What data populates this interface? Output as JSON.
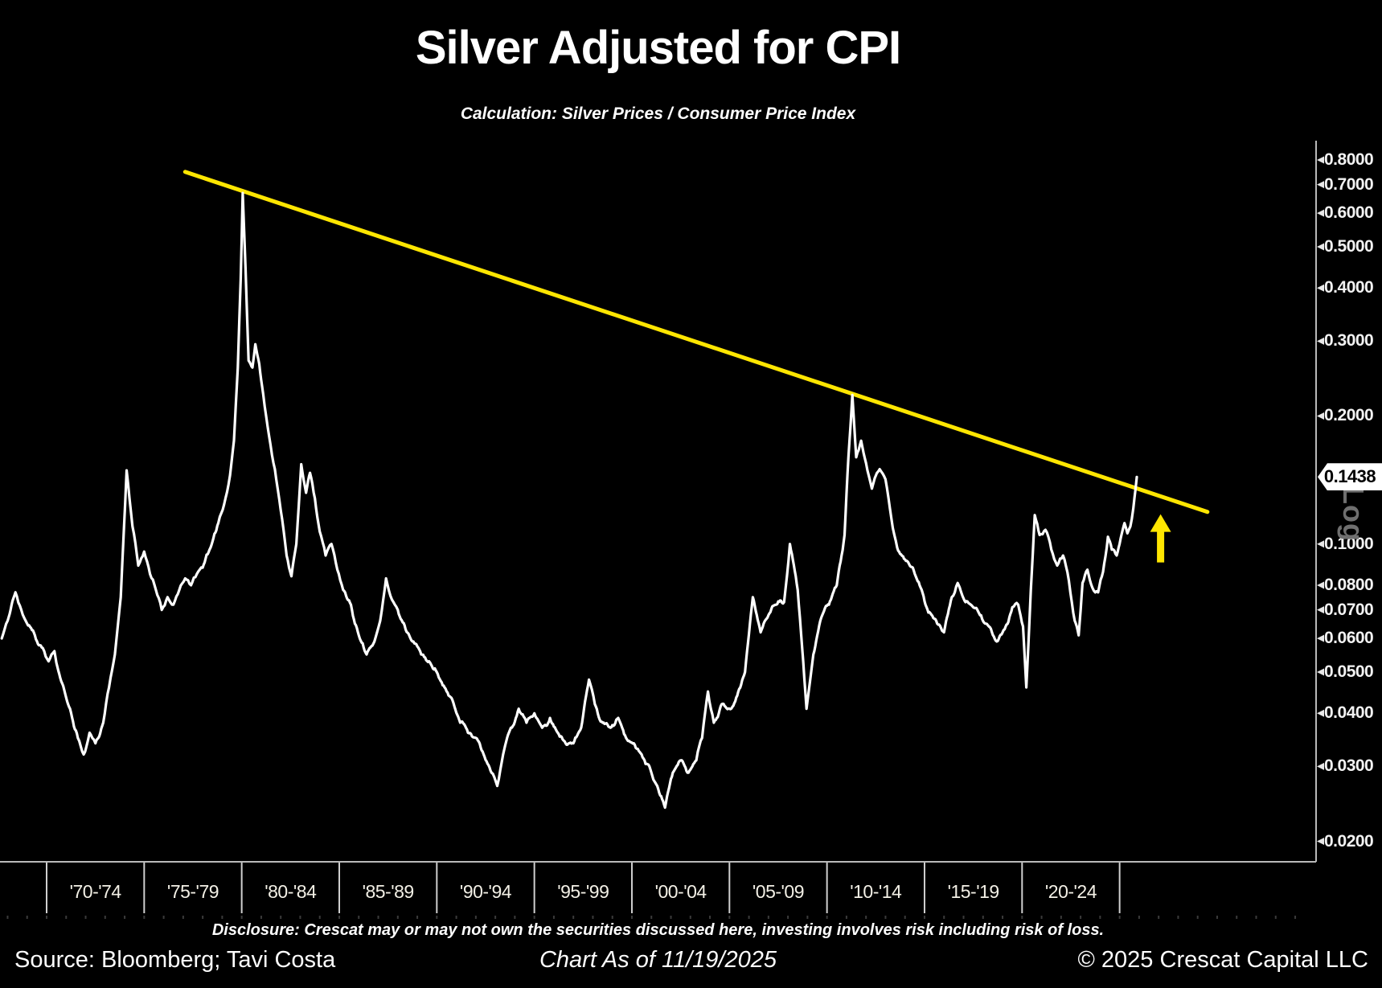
{
  "header": {
    "title": "Silver Adjusted for CPI",
    "subtitle": "Calculation: Silver Prices / Consumer Price Index"
  },
  "footer": {
    "disclosure": "Disclosure: Crescat may or may not own the securities discussed here, investing involves risk including risk of loss.",
    "source": "Source: Bloomberg; Tavi Costa",
    "as_of": "Chart As of 11/19/2025",
    "copyright": "© 2025 Crescat Capital LLC"
  },
  "colors": {
    "background": "#000000",
    "price_line": "#ffffff",
    "trendline": "#ffe600",
    "arrow": "#ffe600",
    "axis": "#b9b9b9",
    "separator": "#cfcfcf",
    "minor_tick": "#3a3a3a"
  },
  "chart_data": {
    "type": "line",
    "title": "Silver Adjusted for CPI",
    "subtitle": "Calculation: Silver Prices / Consumer Price Index",
    "legend": "none",
    "grid": false,
    "xaxis": {
      "xlim": [
        1967.61,
        2035.07
      ],
      "bin_start_year": 1970,
      "bin_span_years": 5,
      "bin_labels": [
        "'70-'74",
        "'75-'79",
        "'80-'84",
        "'85-'89",
        "'90-'94",
        "'95-'99",
        "'00-'04",
        "'05-'09",
        "'10-'14",
        "'15-'19",
        "'20-'24"
      ]
    },
    "yaxis": {
      "scale": "log",
      "ylim": [
        0.0179,
        0.888
      ],
      "scale_label": "Log",
      "current_value": 0.1438,
      "current_value_label": "0.1438",
      "ticks": [
        {
          "label": "0.8000",
          "value": 0.8
        },
        {
          "label": "0.7000",
          "value": 0.7
        },
        {
          "label": "0.6000",
          "value": 0.6
        },
        {
          "label": "0.5000",
          "value": 0.5
        },
        {
          "label": "0.4000",
          "value": 0.4
        },
        {
          "label": "0.3000",
          "value": 0.3
        },
        {
          "label": "0.2000",
          "value": 0.2
        },
        {
          "label": "0.1000",
          "value": 0.1
        },
        {
          "label": "0.0800",
          "value": 0.08
        },
        {
          "label": "0.0700",
          "value": 0.07
        },
        {
          "label": "0.0600",
          "value": 0.06
        },
        {
          "label": "0.0500",
          "value": 0.05
        },
        {
          "label": "0.0400",
          "value": 0.04
        },
        {
          "label": "0.0300",
          "value": 0.03
        },
        {
          "label": "0.0200",
          "value": 0.02
        }
      ]
    },
    "series": [
      {
        "name": "Silver Prices / Consumer Price Index",
        "color": "#ffffff",
        "points": [
          [
            1967.7,
            0.06
          ],
          [
            1968.0,
            0.066
          ],
          [
            1968.4,
            0.077
          ],
          [
            1968.7,
            0.07
          ],
          [
            1969.0,
            0.065
          ],
          [
            1969.4,
            0.061
          ],
          [
            1969.8,
            0.057
          ],
          [
            1970.1,
            0.053
          ],
          [
            1970.4,
            0.056
          ],
          [
            1970.8,
            0.047
          ],
          [
            1971.2,
            0.041
          ],
          [
            1971.6,
            0.035
          ],
          [
            1971.9,
            0.032
          ],
          [
            1972.2,
            0.036
          ],
          [
            1972.5,
            0.034
          ],
          [
            1972.9,
            0.038
          ],
          [
            1973.2,
            0.046
          ],
          [
            1973.5,
            0.055
          ],
          [
            1973.8,
            0.075
          ],
          [
            1974.1,
            0.149
          ],
          [
            1974.4,
            0.11
          ],
          [
            1974.7,
            0.089
          ],
          [
            1975.0,
            0.096
          ],
          [
            1975.3,
            0.085
          ],
          [
            1975.6,
            0.078
          ],
          [
            1975.9,
            0.07
          ],
          [
            1976.2,
            0.075
          ],
          [
            1976.5,
            0.072
          ],
          [
            1976.8,
            0.078
          ],
          [
            1977.1,
            0.083
          ],
          [
            1977.4,
            0.08
          ],
          [
            1977.7,
            0.085
          ],
          [
            1978.0,
            0.088
          ],
          [
            1978.4,
            0.098
          ],
          [
            1978.8,
            0.112
          ],
          [
            1979.1,
            0.124
          ],
          [
            1979.4,
            0.145
          ],
          [
            1979.6,
            0.175
          ],
          [
            1979.8,
            0.26
          ],
          [
            1979.95,
            0.42
          ],
          [
            1980.05,
            0.669
          ],
          [
            1980.2,
            0.44
          ],
          [
            1980.35,
            0.27
          ],
          [
            1980.55,
            0.26
          ],
          [
            1980.7,
            0.295
          ],
          [
            1980.9,
            0.265
          ],
          [
            1981.1,
            0.225
          ],
          [
            1981.4,
            0.18
          ],
          [
            1981.7,
            0.15
          ],
          [
            1982.0,
            0.12
          ],
          [
            1982.3,
            0.094
          ],
          [
            1982.55,
            0.084
          ],
          [
            1982.8,
            0.1
          ],
          [
            1983.05,
            0.154
          ],
          [
            1983.3,
            0.132
          ],
          [
            1983.5,
            0.147
          ],
          [
            1983.75,
            0.128
          ],
          [
            1984.0,
            0.107
          ],
          [
            1984.3,
            0.094
          ],
          [
            1984.6,
            0.1
          ],
          [
            1984.9,
            0.087
          ],
          [
            1985.2,
            0.078
          ],
          [
            1985.6,
            0.072
          ],
          [
            1986.0,
            0.061
          ],
          [
            1986.4,
            0.055
          ],
          [
            1986.8,
            0.059
          ],
          [
            1987.1,
            0.066
          ],
          [
            1987.4,
            0.083
          ],
          [
            1987.7,
            0.074
          ],
          [
            1988.0,
            0.07
          ],
          [
            1988.4,
            0.063
          ],
          [
            1988.8,
            0.059
          ],
          [
            1989.2,
            0.055
          ],
          [
            1989.6,
            0.053
          ],
          [
            1990.0,
            0.05
          ],
          [
            1990.4,
            0.046
          ],
          [
            1990.8,
            0.043
          ],
          [
            1991.2,
            0.038
          ],
          [
            1991.6,
            0.036
          ],
          [
            1992.0,
            0.035
          ],
          [
            1992.4,
            0.032
          ],
          [
            1992.8,
            0.029
          ],
          [
            1993.1,
            0.027
          ],
          [
            1993.4,
            0.032
          ],
          [
            1993.8,
            0.037
          ],
          [
            1994.2,
            0.041
          ],
          [
            1994.6,
            0.038
          ],
          [
            1995.0,
            0.04
          ],
          [
            1995.4,
            0.037
          ],
          [
            1995.8,
            0.039
          ],
          [
            1996.2,
            0.036
          ],
          [
            1996.6,
            0.034
          ],
          [
            1997.0,
            0.034
          ],
          [
            1997.4,
            0.037
          ],
          [
            1997.8,
            0.048
          ],
          [
            1998.1,
            0.042
          ],
          [
            1998.5,
            0.038
          ],
          [
            1998.9,
            0.037
          ],
          [
            1999.3,
            0.039
          ],
          [
            1999.7,
            0.035
          ],
          [
            2000.1,
            0.034
          ],
          [
            2000.5,
            0.032
          ],
          [
            2000.9,
            0.03
          ],
          [
            2001.3,
            0.027
          ],
          [
            2001.7,
            0.024
          ],
          [
            2002.1,
            0.029
          ],
          [
            2002.5,
            0.031
          ],
          [
            2002.9,
            0.029
          ],
          [
            2003.3,
            0.031
          ],
          [
            2003.6,
            0.035
          ],
          [
            2003.9,
            0.045
          ],
          [
            2004.2,
            0.038
          ],
          [
            2004.6,
            0.042
          ],
          [
            2005.0,
            0.041
          ],
          [
            2005.4,
            0.044
          ],
          [
            2005.8,
            0.05
          ],
          [
            2006.2,
            0.075
          ],
          [
            2006.6,
            0.062
          ],
          [
            2007.0,
            0.068
          ],
          [
            2007.4,
            0.072
          ],
          [
            2007.8,
            0.073
          ],
          [
            2008.1,
            0.1
          ],
          [
            2008.5,
            0.078
          ],
          [
            2008.95,
            0.041
          ],
          [
            2009.3,
            0.055
          ],
          [
            2009.7,
            0.067
          ],
          [
            2010.1,
            0.072
          ],
          [
            2010.5,
            0.08
          ],
          [
            2010.9,
            0.105
          ],
          [
            2011.1,
            0.16
          ],
          [
            2011.3,
            0.224
          ],
          [
            2011.5,
            0.16
          ],
          [
            2011.75,
            0.175
          ],
          [
            2012.0,
            0.155
          ],
          [
            2012.3,
            0.135
          ],
          [
            2012.7,
            0.15
          ],
          [
            2013.0,
            0.142
          ],
          [
            2013.3,
            0.115
          ],
          [
            2013.6,
            0.098
          ],
          [
            2014.0,
            0.092
          ],
          [
            2014.4,
            0.088
          ],
          [
            2014.8,
            0.079
          ],
          [
            2015.2,
            0.069
          ],
          [
            2015.6,
            0.066
          ],
          [
            2016.0,
            0.062
          ],
          [
            2016.4,
            0.075
          ],
          [
            2016.7,
            0.081
          ],
          [
            2017.1,
            0.073
          ],
          [
            2017.5,
            0.071
          ],
          [
            2017.9,
            0.068
          ],
          [
            2018.3,
            0.064
          ],
          [
            2018.7,
            0.059
          ],
          [
            2019.1,
            0.063
          ],
          [
            2019.5,
            0.071
          ],
          [
            2019.8,
            0.072
          ],
          [
            2020.05,
            0.064
          ],
          [
            2020.22,
            0.046
          ],
          [
            2020.45,
            0.078
          ],
          [
            2020.65,
            0.117
          ],
          [
            2020.9,
            0.105
          ],
          [
            2021.2,
            0.108
          ],
          [
            2021.5,
            0.097
          ],
          [
            2021.8,
            0.089
          ],
          [
            2022.1,
            0.094
          ],
          [
            2022.4,
            0.082
          ],
          [
            2022.7,
            0.066
          ],
          [
            2022.9,
            0.061
          ],
          [
            2023.1,
            0.081
          ],
          [
            2023.35,
            0.087
          ],
          [
            2023.6,
            0.079
          ],
          [
            2023.9,
            0.077
          ],
          [
            2024.15,
            0.086
          ],
          [
            2024.4,
            0.104
          ],
          [
            2024.6,
            0.097
          ],
          [
            2024.85,
            0.094
          ],
          [
            2025.05,
            0.103
          ],
          [
            2025.25,
            0.112
          ],
          [
            2025.4,
            0.106
          ],
          [
            2025.55,
            0.11
          ],
          [
            2025.7,
            0.121
          ],
          [
            2025.82,
            0.135
          ],
          [
            2025.88,
            0.1438
          ]
        ]
      }
    ],
    "trendline": {
      "name": "descending resistance trendline from 1980 peak",
      "color": "#ffe600",
      "points": [
        [
          1977.1,
          0.75
        ],
        [
          2029.5,
          0.119
        ]
      ]
    },
    "annotations": [
      {
        "type": "arrow-up",
        "color": "#ffe600",
        "x_year": 2027.1,
        "value_from": 0.0905,
        "value_to": 0.1175,
        "meaning": "breakout above long-term trendline"
      }
    ]
  }
}
